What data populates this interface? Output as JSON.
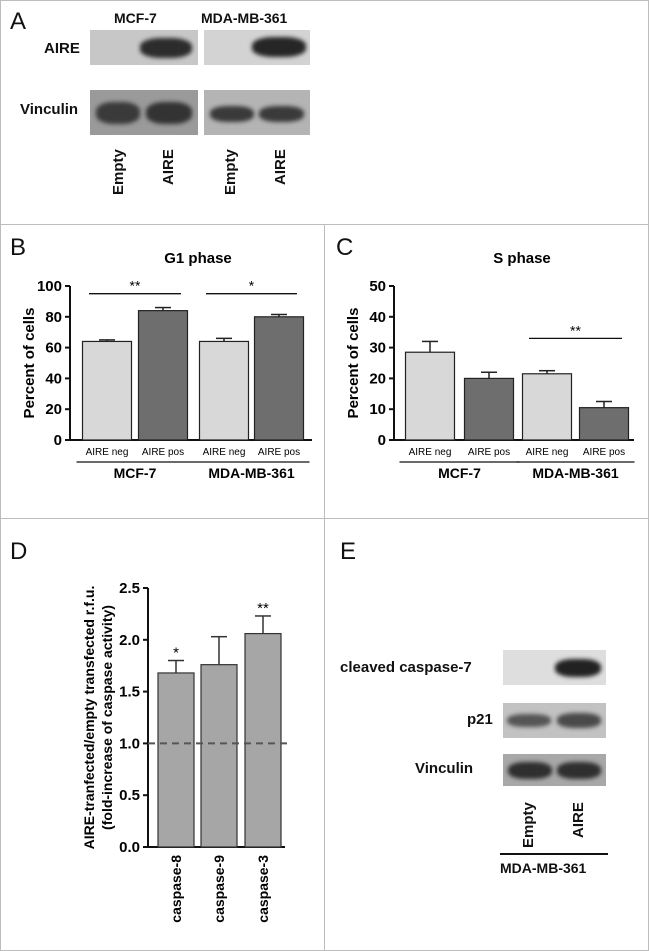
{
  "panel_a": {
    "letter": "A",
    "cell_lines": [
      "MCF-7",
      "MDA-MB-361"
    ],
    "rows": [
      "AIRE",
      "Vinculin"
    ],
    "lanes": [
      "Empty",
      "AIRE",
      "Empty",
      "AIRE"
    ]
  },
  "panel_e": {
    "letter": "E",
    "rows": [
      "cleaved caspase-7",
      "p21",
      "Vinculin"
    ],
    "lanes": [
      "Empty",
      "AIRE"
    ],
    "group_label": "MDA-MB-361"
  },
  "chart_data": [
    {
      "panel": "B",
      "type": "bar",
      "title": "G1 phase",
      "ylabel": "Percent of cells",
      "ylim": [
        0,
        100
      ],
      "yticks": [
        0,
        20,
        40,
        60,
        80,
        100
      ],
      "categories": [
        "AIRE neg",
        "AIRE pos",
        "AIRE neg",
        "AIRE pos"
      ],
      "groups": [
        "MCF-7",
        "MDA-MB-361"
      ],
      "values": [
        64,
        84,
        64,
        80
      ],
      "errors": [
        1,
        2,
        2,
        1.5
      ],
      "colors": [
        "#d8d8d8",
        "#6e6e6e",
        "#d8d8d8",
        "#6e6e6e"
      ],
      "significance": [
        {
          "pair": [
            0,
            1
          ],
          "label": "**",
          "level": 95
        },
        {
          "pair": [
            2,
            3
          ],
          "label": "*",
          "level": 95
        }
      ]
    },
    {
      "panel": "C",
      "type": "bar",
      "title": "S phase",
      "ylabel": "Percent of cells",
      "ylim": [
        0,
        50
      ],
      "yticks": [
        0,
        10,
        20,
        30,
        40,
        50
      ],
      "categories": [
        "AIRE neg",
        "AIRE pos",
        "AIRE neg",
        "AIRE pos"
      ],
      "groups": [
        "MCF-7",
        "MDA-MB-361"
      ],
      "values": [
        28.5,
        20,
        21.5,
        10.5
      ],
      "errors": [
        3.5,
        2,
        1,
        2
      ],
      "colors": [
        "#d8d8d8",
        "#6e6e6e",
        "#d8d8d8",
        "#6e6e6e"
      ],
      "significance": [
        {
          "pair": [
            2,
            3
          ],
          "label": "**",
          "level": 33
        }
      ]
    },
    {
      "panel": "D",
      "type": "bar",
      "ylabel": "AIRE-tranfected/empty transfected r.f.u.",
      "ylabel2": "(fold-increase of caspase activity)",
      "ylim": [
        0,
        2.5
      ],
      "yticks": [
        "0.0",
        "0.5",
        "1.0",
        "1.5",
        "2.0",
        "2.5"
      ],
      "categories": [
        "caspase-8",
        "caspase-9",
        "caspase-3"
      ],
      "values": [
        1.68,
        1.76,
        2.06
      ],
      "errors": [
        0.12,
        0.27,
        0.17
      ],
      "colors": [
        "#a6a6a6",
        "#a6a6a6",
        "#a6a6a6"
      ],
      "stars": [
        "*",
        "",
        "**"
      ],
      "reference_line": 1.0
    }
  ]
}
